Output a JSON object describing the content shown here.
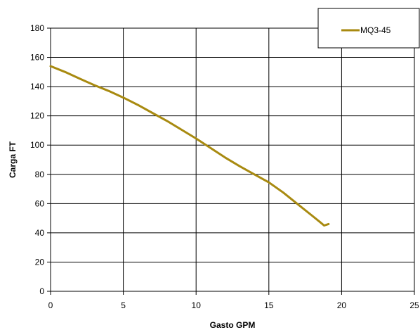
{
  "chart_data": {
    "type": "line",
    "title": "",
    "xlabel": "Gasto GPM",
    "ylabel": "Carga FT",
    "xlim": [
      0,
      25
    ],
    "ylim": [
      0,
      180
    ],
    "xticks": [
      0,
      5,
      10,
      15,
      20,
      25
    ],
    "yticks": [
      0,
      20,
      40,
      60,
      80,
      100,
      120,
      140,
      160,
      180
    ],
    "grid": "vertical and horizontal major gridlines",
    "legend_position": "top-right",
    "series": [
      {
        "name": "MQ3-45",
        "color": "#a88a10",
        "x": [
          0,
          1,
          2,
          3,
          4,
          5,
          6,
          7,
          8,
          9,
          10,
          11,
          12,
          13,
          14,
          15,
          16,
          17,
          18,
          18.5,
          18.8,
          19.1
        ],
        "y": [
          154,
          150,
          145.5,
          141,
          137,
          132.5,
          127.5,
          122,
          116.5,
          110.5,
          104.5,
          98,
          91.5,
          85.5,
          80,
          74.5,
          67.5,
          59.5,
          51.5,
          47.5,
          45,
          46
        ]
      }
    ]
  }
}
